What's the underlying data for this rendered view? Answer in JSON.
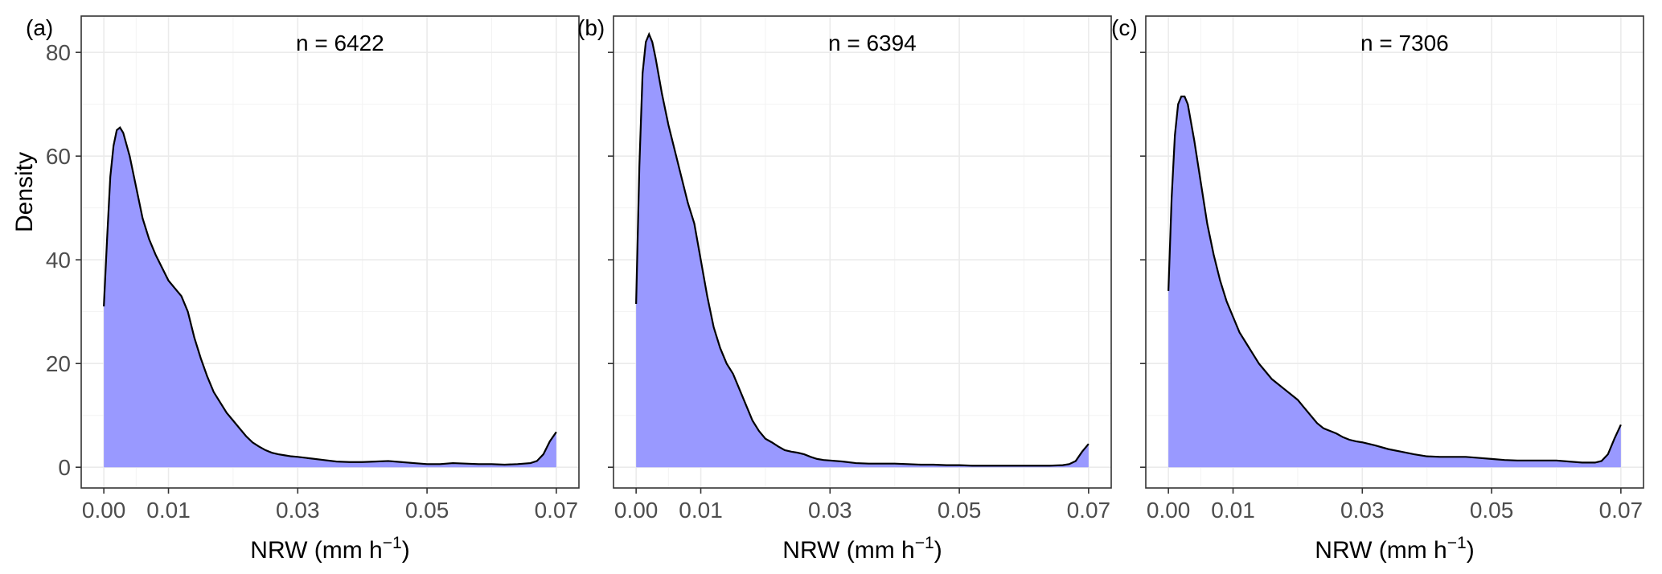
{
  "figure": {
    "ylabel": "Density",
    "xlabel_main": "NRW (mm h",
    "xlabel_sup": "−1",
    "xlabel_close": ")",
    "fill_color": "#9999ff",
    "line_color": "#000000"
  },
  "chart_data": [
    {
      "type": "area",
      "panel_label": "(a)",
      "annotation": "n = 6422",
      "xlabel": "NRW (mm h−1)",
      "ylabel": "Density",
      "xlim": [
        -0.0035,
        0.0735
      ],
      "ylim": [
        -4,
        87
      ],
      "x_ticks": [
        0.0,
        0.01,
        0.03,
        0.05,
        0.07
      ],
      "x_tick_labels": [
        "0.00",
        "0.01",
        "0.03",
        "0.05",
        "0.07"
      ],
      "y_ticks": [
        0,
        20,
        40,
        60,
        80
      ],
      "y_tick_labels": [
        "0",
        "20",
        "40",
        "60",
        "80"
      ],
      "grid": true,
      "x": [
        0,
        0.0005,
        0.001,
        0.0015,
        0.002,
        0.0025,
        0.003,
        0.004,
        0.005,
        0.006,
        0.007,
        0.008,
        0.009,
        0.01,
        0.011,
        0.012,
        0.013,
        0.014,
        0.015,
        0.016,
        0.017,
        0.018,
        0.019,
        0.02,
        0.021,
        0.022,
        0.023,
        0.024,
        0.025,
        0.026,
        0.027,
        0.028,
        0.029,
        0.03,
        0.032,
        0.034,
        0.036,
        0.038,
        0.04,
        0.042,
        0.044,
        0.046,
        0.048,
        0.05,
        0.052,
        0.054,
        0.056,
        0.058,
        0.06,
        0.062,
        0.064,
        0.066,
        0.067,
        0.068,
        0.069,
        0.07
      ],
      "y": [
        31,
        44,
        56,
        62,
        65,
        65.5,
        64.5,
        60,
        54,
        48,
        44,
        41,
        38.5,
        36,
        34.5,
        33,
        30,
        25,
        21,
        17.5,
        14.5,
        12.5,
        10.5,
        9,
        7.5,
        6,
        4.8,
        4,
        3.3,
        2.8,
        2.5,
        2.3,
        2.1,
        2.0,
        1.7,
        1.4,
        1.1,
        1.0,
        1.0,
        1.1,
        1.2,
        1.0,
        0.8,
        0.6,
        0.6,
        0.8,
        0.7,
        0.6,
        0.6,
        0.5,
        0.6,
        0.8,
        1.2,
        2.5,
        5,
        6.8
      ]
    },
    {
      "type": "area",
      "panel_label": "(b)",
      "annotation": "n = 6394",
      "xlabel": "NRW (mm h−1)",
      "ylabel": "",
      "xlim": [
        -0.0035,
        0.0735
      ],
      "ylim": [
        -4,
        87
      ],
      "x_ticks": [
        0.0,
        0.01,
        0.03,
        0.05,
        0.07
      ],
      "x_tick_labels": [
        "0.00",
        "0.01",
        "0.03",
        "0.05",
        "0.07"
      ],
      "y_ticks": [
        0,
        20,
        40,
        60,
        80
      ],
      "y_tick_labels": [],
      "grid": true,
      "x": [
        0,
        0.0005,
        0.001,
        0.0015,
        0.002,
        0.0025,
        0.003,
        0.004,
        0.005,
        0.006,
        0.007,
        0.008,
        0.009,
        0.01,
        0.011,
        0.012,
        0.013,
        0.014,
        0.015,
        0.016,
        0.017,
        0.018,
        0.019,
        0.02,
        0.021,
        0.022,
        0.023,
        0.024,
        0.025,
        0.026,
        0.027,
        0.028,
        0.029,
        0.03,
        0.032,
        0.034,
        0.036,
        0.038,
        0.04,
        0.042,
        0.044,
        0.046,
        0.048,
        0.05,
        0.052,
        0.054,
        0.056,
        0.058,
        0.06,
        0.062,
        0.064,
        0.066,
        0.067,
        0.068,
        0.069,
        0.07
      ],
      "y": [
        31.5,
        58,
        76,
        82,
        83.5,
        82,
        79,
        72,
        66,
        61,
        56,
        51,
        47,
        40,
        33,
        27,
        23,
        20,
        18,
        15,
        12,
        9,
        7,
        5.5,
        4.8,
        4,
        3.3,
        3.0,
        2.8,
        2.5,
        2.0,
        1.6,
        1.4,
        1.3,
        1.1,
        0.8,
        0.7,
        0.7,
        0.7,
        0.6,
        0.5,
        0.5,
        0.4,
        0.4,
        0.3,
        0.3,
        0.3,
        0.3,
        0.3,
        0.3,
        0.3,
        0.4,
        0.6,
        1.2,
        3,
        4.5
      ]
    },
    {
      "type": "area",
      "panel_label": "(c)",
      "annotation": "n = 7306",
      "xlabel": "NRW (mm h−1)",
      "ylabel": "",
      "xlim": [
        -0.0035,
        0.0735
      ],
      "ylim": [
        -4,
        87
      ],
      "x_ticks": [
        0.0,
        0.01,
        0.03,
        0.05,
        0.07
      ],
      "x_tick_labels": [
        "0.00",
        "0.01",
        "0.03",
        "0.05",
        "0.07"
      ],
      "y_ticks": [
        0,
        20,
        40,
        60,
        80
      ],
      "y_tick_labels": [],
      "grid": true,
      "x": [
        0,
        0.0005,
        0.001,
        0.0015,
        0.002,
        0.0025,
        0.003,
        0.004,
        0.005,
        0.006,
        0.007,
        0.008,
        0.009,
        0.01,
        0.011,
        0.012,
        0.013,
        0.014,
        0.015,
        0.016,
        0.017,
        0.018,
        0.019,
        0.02,
        0.021,
        0.022,
        0.023,
        0.024,
        0.025,
        0.026,
        0.027,
        0.028,
        0.029,
        0.03,
        0.032,
        0.034,
        0.036,
        0.038,
        0.04,
        0.042,
        0.044,
        0.046,
        0.048,
        0.05,
        0.052,
        0.054,
        0.056,
        0.058,
        0.06,
        0.062,
        0.064,
        0.066,
        0.067,
        0.068,
        0.069,
        0.07
      ],
      "y": [
        34,
        52,
        64,
        70,
        71.5,
        71.5,
        70,
        63,
        55,
        47,
        41,
        36,
        32,
        29,
        26,
        24,
        22,
        20,
        18.5,
        17,
        16,
        15,
        14,
        13,
        11.5,
        10,
        8.5,
        7.5,
        7,
        6.5,
        5.8,
        5.3,
        5.0,
        4.8,
        4.2,
        3.5,
        3.0,
        2.5,
        2.1,
        2.0,
        2.0,
        2.0,
        1.8,
        1.6,
        1.4,
        1.3,
        1.3,
        1.3,
        1.3,
        1.1,
        0.9,
        0.9,
        1.2,
        2.5,
        5.5,
        8.2
      ]
    }
  ]
}
